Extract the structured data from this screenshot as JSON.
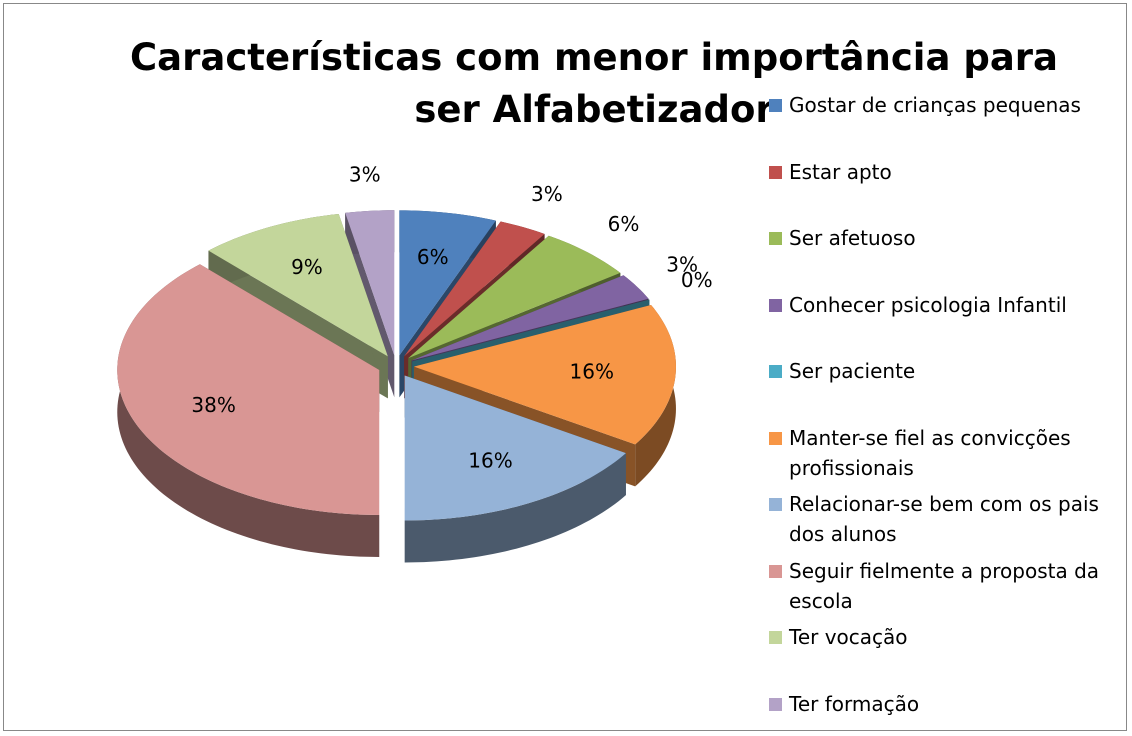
{
  "chart_data": {
    "type": "pie",
    "title": "Características com menor importância para ser Alfabetizador",
    "categories": [
      "Gostar de crianças pequenas",
      "Estar apto",
      "Ser afetuoso",
      "Conhecer psicologia Infantil",
      "Ser paciente",
      "Manter-se fiel as convicções profissionais",
      "Relacionar-se bem com os pais dos alunos",
      "Seguir fielmente a proposta da escola",
      "Ter vocação",
      "Ter formação"
    ],
    "values": [
      6,
      3,
      6,
      3,
      0,
      16,
      16,
      38,
      9,
      3
    ],
    "value_labels": [
      "6%",
      "3%",
      "6%",
      "3%",
      "0%",
      "16%",
      "16%",
      "38%",
      "9%",
      "3%"
    ],
    "colors": [
      "#4f81bd",
      "#c0504d",
      "#9bbb59",
      "#8064a2",
      "#4bacc6",
      "#f79646",
      "#95b3d7",
      "#d99694",
      "#c3d69b",
      "#b3a2c7"
    ],
    "legend": "right"
  }
}
